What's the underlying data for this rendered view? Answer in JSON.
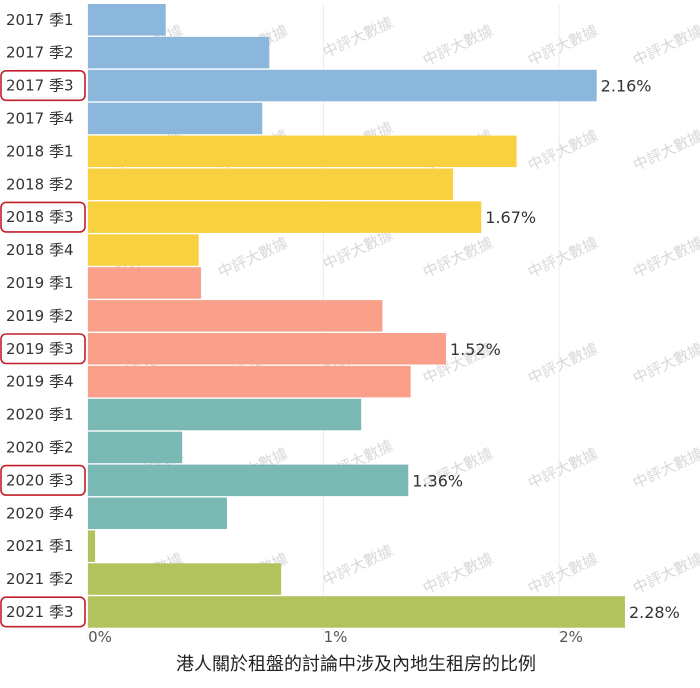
{
  "chart_data": {
    "type": "bar",
    "orientation": "horizontal",
    "xlabel": "港人關於租盤的討論中涉及內地生租房的比例",
    "x_ticks": [
      "0%",
      "1%",
      "2%"
    ],
    "xlim": [
      0,
      2.5
    ],
    "watermark": "中評大數據",
    "categories": [
      "2017 季1",
      "2017 季2",
      "2017 季3",
      "2017 季4",
      "2018 季1",
      "2018 季2",
      "2018 季3",
      "2018 季4",
      "2019 季1",
      "2019 季2",
      "2019 季3",
      "2019 季4",
      "2020 季1",
      "2020 季2",
      "2020 季3",
      "2020 季4",
      "2021 季1",
      "2021 季2",
      "2021 季3"
    ],
    "values": [
      0.33,
      0.77,
      2.16,
      0.74,
      1.82,
      1.55,
      1.67,
      0.47,
      0.48,
      1.25,
      1.52,
      1.37,
      1.16,
      0.4,
      1.36,
      0.59,
      0.03,
      0.82,
      2.28
    ],
    "value_labels": [
      "",
      "",
      "2.16%",
      "",
      "",
      "",
      "1.67%",
      "",
      "",
      "",
      "1.52%",
      "",
      "",
      "",
      "1.36%",
      "",
      "",
      "",
      "2.28%"
    ],
    "highlighted": [
      false,
      false,
      true,
      false,
      false,
      false,
      true,
      false,
      false,
      false,
      true,
      false,
      false,
      false,
      true,
      false,
      false,
      false,
      true
    ],
    "year_colors": {
      "2017": "#8ab7db",
      "2018": "#f9d03f",
      "2019": "#f99f8a",
      "2020": "#79b8b3",
      "2021": "#b2c35d"
    },
    "highlight_color": "#c0202a",
    "grid": true
  }
}
